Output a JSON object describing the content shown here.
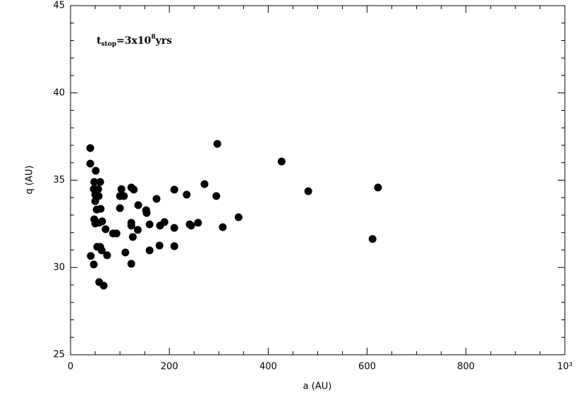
{
  "chart_data": {
    "type": "scatter",
    "x_label": "a (AU)",
    "y_label": "q (AU)",
    "annotation": {
      "text": "t",
      "subscript": "stop",
      "main": "=3x10",
      "superscript": "8",
      "tail": "yrs"
    },
    "color": "#000000",
    "xlim": [
      0,
      1000
    ],
    "ylim": [
      25,
      45
    ],
    "xticks": [
      0,
      200,
      400,
      600,
      800,
      {
        "value": 1000,
        "label": "10³"
      }
    ],
    "yticks": [
      25,
      30,
      35,
      40,
      45
    ],
    "xminorticks": [
      50,
      100,
      150,
      250,
      300,
      350,
      450,
      500,
      550,
      650,
      700,
      750,
      850,
      900,
      950
    ],
    "yminorticks": [
      26,
      27,
      28,
      29,
      31,
      32,
      33,
      34,
      36,
      37,
      38,
      39,
      41,
      42,
      43,
      44
    ],
    "x": [
      40,
      40,
      51,
      48,
      60,
      47,
      56,
      50,
      57,
      50,
      53,
      61,
      48,
      50,
      58,
      64,
      71,
      86,
      93,
      41,
      47,
      54,
      60,
      63,
      74,
      58,
      67,
      103,
      100,
      108,
      100,
      123,
      128,
      137,
      153,
      154,
      123,
      123,
      136,
      160,
      126,
      111,
      123,
      160,
      174,
      181,
      190,
      180,
      210,
      210,
      210,
      235,
      241,
      244,
      258,
      271,
      295,
      297,
      308,
      340,
      427,
      481,
      611,
      622
    ],
    "values": [
      36.84,
      35.95,
      35.54,
      34.9,
      34.9,
      34.49,
      34.49,
      34.17,
      34.09,
      33.8,
      33.32,
      33.36,
      32.76,
      32.52,
      32.56,
      32.64,
      32.19,
      31.95,
      31.95,
      30.66,
      30.17,
      31.18,
      31.18,
      30.98,
      30.7,
      29.16,
      28.96,
      34.49,
      34.09,
      34.09,
      33.4,
      34.58,
      34.46,
      33.57,
      33.28,
      33.12,
      32.56,
      32.4,
      32.15,
      32.47,
      31.75,
      30.86,
      30.21,
      30.98,
      33.93,
      32.4,
      32.6,
      31.26,
      34.46,
      32.27,
      31.22,
      34.17,
      32.47,
      32.4,
      32.56,
      34.78,
      34.09,
      37.08,
      32.31,
      32.88,
      36.07,
      34.37,
      31.63,
      34.58
    ]
  }
}
